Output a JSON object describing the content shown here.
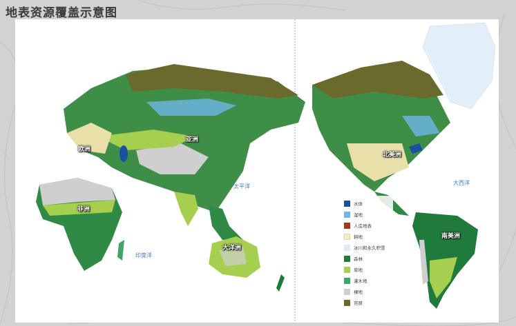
{
  "title": "地表资源覆盖示意图",
  "continent_labels": {
    "europe": "欧洲",
    "asia": "亚洲",
    "africa": "非洲",
    "oceania": "大洋洲",
    "north_america": "北美洲",
    "south_america": "南美洲"
  },
  "ocean_labels": {
    "pacific": "太平洋",
    "indian": "印度洋",
    "atlantic": "大西洋"
  },
  "legend": [
    {
      "label": "水体",
      "color": "#1a4fa3"
    },
    {
      "label": "湿地",
      "color": "#6fb7e8"
    },
    {
      "label": "人造地表",
      "color": "#a23a1c"
    },
    {
      "label": "耕地",
      "color": "#f4eec4"
    },
    {
      "label": "冰川和永久积雪",
      "color": "#dcecf7"
    },
    {
      "label": "森林",
      "color": "#1f7a3c"
    },
    {
      "label": "草地",
      "color": "#a6cf4f"
    },
    {
      "label": "灌木地",
      "color": "#3fa46a"
    },
    {
      "label": "裸地",
      "color": "#cfcfcf"
    },
    {
      "label": "苔原",
      "color": "#6b6a2d"
    }
  ]
}
